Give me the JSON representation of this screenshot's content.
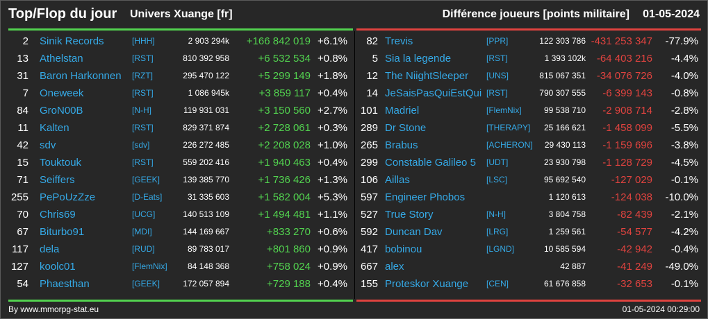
{
  "header": {
    "title": "Top/Flop du jour",
    "universe": "Univers Xuange [fr]",
    "subtitle": "Différence joueurs [points militaire]",
    "date": "01-05-2024"
  },
  "colors": {
    "background": "#272727",
    "positive": "#52d24f",
    "negative": "#e0433f",
    "link": "#35a9e6",
    "text": "#ffffff"
  },
  "top": [
    {
      "rank": "2",
      "name": "Sinik Records",
      "alliance": "[HHH]",
      "points": "2 903 294k",
      "diff": "+166 842 019",
      "pct": "+6.1%"
    },
    {
      "rank": "13",
      "name": "Athelstan",
      "alliance": "[RST]",
      "points": "810 392 958",
      "diff": "+6 532 534",
      "pct": "+0.8%"
    },
    {
      "rank": "31",
      "name": "Baron Harkonnen",
      "alliance": "[RZT]",
      "points": "295 470 122",
      "diff": "+5 299 149",
      "pct": "+1.8%"
    },
    {
      "rank": "7",
      "name": "Oneweek",
      "alliance": "[RST]",
      "points": "1 086 945k",
      "diff": "+3 859 117",
      "pct": "+0.4%"
    },
    {
      "rank": "84",
      "name": "GroN00B",
      "alliance": "[N-H]",
      "points": "119 931 031",
      "diff": "+3 150 560",
      "pct": "+2.7%"
    },
    {
      "rank": "11",
      "name": "Kalten",
      "alliance": "[RST]",
      "points": "829 371 874",
      "diff": "+2 728 061",
      "pct": "+0.3%"
    },
    {
      "rank": "42",
      "name": "sdv",
      "alliance": "[sdv]",
      "points": "226 272 485",
      "diff": "+2 208 028",
      "pct": "+1.0%"
    },
    {
      "rank": "15",
      "name": "Touktouk",
      "alliance": "[RST]",
      "points": "559 202 416",
      "diff": "+1 940 463",
      "pct": "+0.4%"
    },
    {
      "rank": "71",
      "name": "Seiffers",
      "alliance": "[GEEK]",
      "points": "139 385 770",
      "diff": "+1 736 426",
      "pct": "+1.3%"
    },
    {
      "rank": "255",
      "name": "PePoUzZze",
      "alliance": "[D-Eats]",
      "points": "31 335 603",
      "diff": "+1 582 004",
      "pct": "+5.3%"
    },
    {
      "rank": "70",
      "name": "Chris69",
      "alliance": "[UCG]",
      "points": "140 513 109",
      "diff": "+1 494 481",
      "pct": "+1.1%"
    },
    {
      "rank": "67",
      "name": "Biturbo91",
      "alliance": "[MDI]",
      "points": "144 169 667",
      "diff": "+833 270",
      "pct": "+0.6%"
    },
    {
      "rank": "117",
      "name": "dela",
      "alliance": "[RUD]",
      "points": "89 783 017",
      "diff": "+801 860",
      "pct": "+0.9%"
    },
    {
      "rank": "127",
      "name": "koolc01",
      "alliance": "[FlemNix]",
      "points": "84 148 368",
      "diff": "+758 024",
      "pct": "+0.9%"
    },
    {
      "rank": "54",
      "name": "Phaesthan",
      "alliance": "[GEEK]",
      "points": "172 057 894",
      "diff": "+729 188",
      "pct": "+0.4%"
    }
  ],
  "flop": [
    {
      "rank": "82",
      "name": "Trevis",
      "alliance": "[PPR]",
      "points": "122 303 786",
      "diff": "-431 253 347",
      "pct": "-77.9%"
    },
    {
      "rank": "5",
      "name": "Sia la legende",
      "alliance": "[RST]",
      "points": "1 393 102k",
      "diff": "-64 403 216",
      "pct": "-4.4%"
    },
    {
      "rank": "12",
      "name": "The NiightSleeper",
      "alliance": "[UNS]",
      "points": "815 067 351",
      "diff": "-34 076 726",
      "pct": "-4.0%"
    },
    {
      "rank": "14",
      "name": "JeSaisPasQuiEstQui",
      "alliance": "[RST]",
      "points": "790 307 555",
      "diff": "-6 399 143",
      "pct": "-0.8%"
    },
    {
      "rank": "101",
      "name": "Madriel",
      "alliance": "[FlemNix]",
      "points": "99 538 710",
      "diff": "-2 908 714",
      "pct": "-2.8%"
    },
    {
      "rank": "289",
      "name": "Dr Stone",
      "alliance": "[THERAPY]",
      "points": "25 166 621",
      "diff": "-1 458 099",
      "pct": "-5.5%"
    },
    {
      "rank": "265",
      "name": "Brabus",
      "alliance": "[ACHERON]",
      "points": "29 430 113",
      "diff": "-1 159 696",
      "pct": "-3.8%"
    },
    {
      "rank": "299",
      "name": "Constable Galileo 5",
      "alliance": "[UDT]",
      "points": "23 930 798",
      "diff": "-1 128 729",
      "pct": "-4.5%"
    },
    {
      "rank": "106",
      "name": "Aillas",
      "alliance": "[LSC]",
      "points": "95 692 540",
      "diff": "-127 029",
      "pct": "-0.1%"
    },
    {
      "rank": "597",
      "name": "Engineer Phobos",
      "alliance": "",
      "points": "1 120 613",
      "diff": "-124 038",
      "pct": "-10.0%"
    },
    {
      "rank": "527",
      "name": "True Story",
      "alliance": "[N-H]",
      "points": "3 804 758",
      "diff": "-82 439",
      "pct": "-2.1%"
    },
    {
      "rank": "592",
      "name": "Duncan Dav",
      "alliance": "[LRG]",
      "points": "1 259 561",
      "diff": "-54 577",
      "pct": "-4.2%"
    },
    {
      "rank": "417",
      "name": "bobinou",
      "alliance": "[LGND]",
      "points": "10 585 594",
      "diff": "-42 942",
      "pct": "-0.4%"
    },
    {
      "rank": "667",
      "name": "alex",
      "alliance": "",
      "points": "42 887",
      "diff": "-41 249",
      "pct": "-49.0%"
    },
    {
      "rank": "155",
      "name": "Proteskor Xuange",
      "alliance": "[CEN]",
      "points": "61 676 858",
      "diff": "-32 653",
      "pct": "-0.1%"
    }
  ],
  "footer": {
    "source": "By www.mmorpg-stat.eu",
    "timestamp": "01-05-2024 00:29:00"
  }
}
